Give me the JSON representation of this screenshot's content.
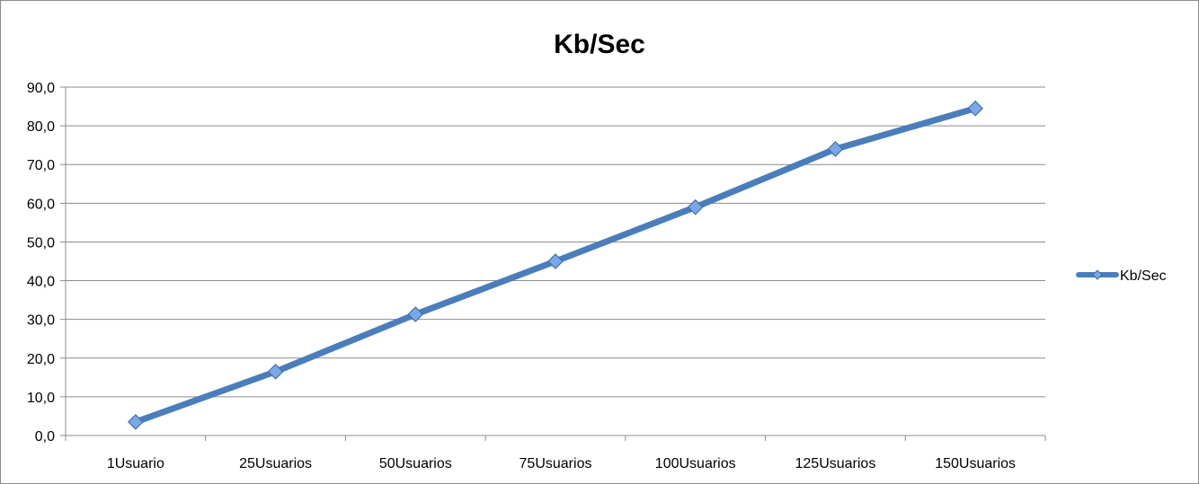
{
  "chart_data": {
    "type": "line",
    "title": "Kb/Sec",
    "categories": [
      "1Usuario",
      "25Usuarios",
      "50Usuarios",
      "75Usuarios",
      "100Usuarios",
      "125Usuarios",
      "150Usuarios"
    ],
    "series": [
      {
        "name": "Kb/Sec",
        "values": [
          3.5,
          16.5,
          31.3,
          45.0,
          59.0,
          74.0,
          84.5
        ],
        "color": "#4a7ebb",
        "marker": "diamond"
      }
    ],
    "yticks": [
      "0,0",
      "10,0",
      "20,0",
      "30,0",
      "40,0",
      "50,0",
      "60,0",
      "70,0",
      "80,0",
      "90,0"
    ],
    "ylim": [
      0,
      90
    ],
    "grid": true,
    "legend": "right",
    "xlabel": "",
    "ylabel": ""
  }
}
